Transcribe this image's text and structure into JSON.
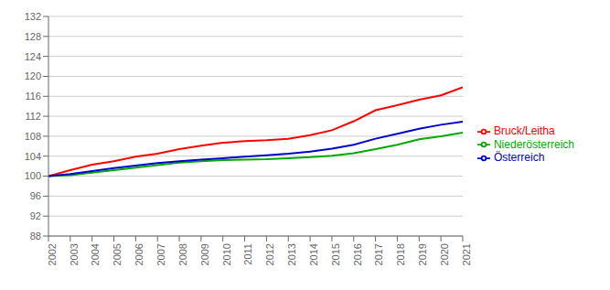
{
  "chart_data": {
    "type": "line",
    "x": [
      2002,
      2003,
      2004,
      2005,
      2006,
      2007,
      2008,
      2009,
      2010,
      2011,
      2012,
      2013,
      2014,
      2015,
      2016,
      2017,
      2018,
      2019,
      2020,
      2021
    ],
    "series": [
      {
        "name": "Bruck/Leitha",
        "color": "#ff0000",
        "values": [
          100.0,
          101.2,
          102.3,
          103.0,
          103.9,
          104.5,
          105.4,
          106.1,
          106.7,
          107.0,
          107.2,
          107.5,
          108.2,
          109.2,
          111.0,
          113.2,
          114.2,
          115.3,
          116.2,
          117.8
        ]
      },
      {
        "name": "Niederösterreich",
        "color": "#00aa00",
        "values": [
          100.0,
          100.2,
          100.7,
          101.2,
          101.7,
          102.2,
          102.7,
          103.0,
          103.2,
          103.3,
          103.4,
          103.6,
          103.8,
          104.1,
          104.6,
          105.4,
          106.3,
          107.4,
          108.0,
          108.7
        ]
      },
      {
        "name": "Österreich",
        "color": "#0000cc",
        "values": [
          100.0,
          100.4,
          101.0,
          101.6,
          102.1,
          102.6,
          103.0,
          103.3,
          103.6,
          103.9,
          104.2,
          104.5,
          104.9,
          105.5,
          106.3,
          107.5,
          108.5,
          109.5,
          110.3,
          110.9
        ]
      }
    ],
    "xlim": [
      2002,
      2021
    ],
    "xticks": [
      2002,
      2003,
      2004,
      2005,
      2006,
      2007,
      2008,
      2009,
      2010,
      2011,
      2012,
      2013,
      2014,
      2015,
      2016,
      2017,
      2018,
      2019,
      2020,
      2021
    ],
    "ylim": [
      88,
      132
    ],
    "yticks": [
      88,
      92,
      96,
      100,
      104,
      108,
      112,
      116,
      120,
      124,
      128,
      132
    ],
    "grid": true,
    "legend": "right"
  }
}
